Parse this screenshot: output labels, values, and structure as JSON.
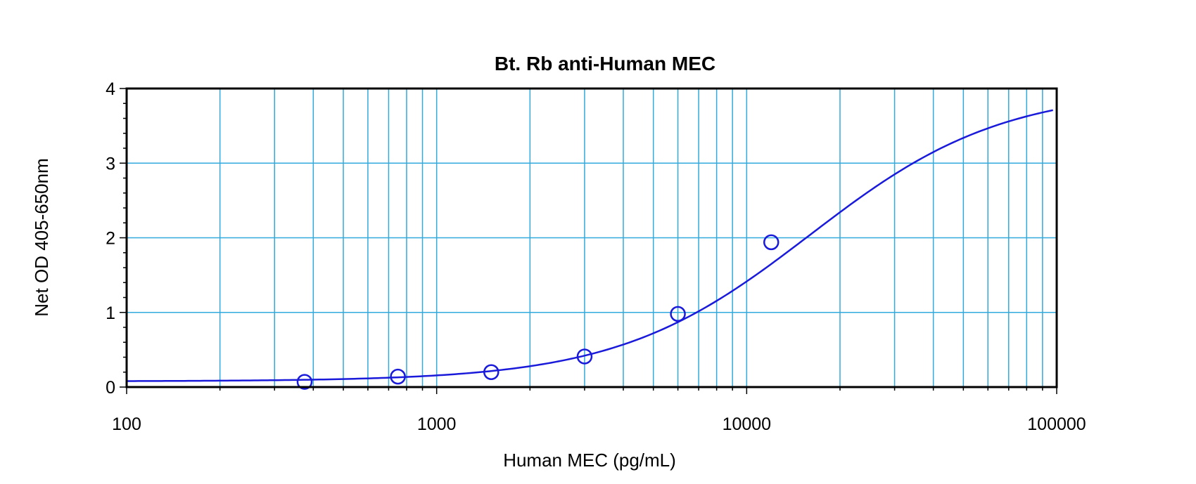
{
  "chart_data": {
    "type": "scatter",
    "title": "Bt. Rb anti-Human MEC",
    "xlabel": "Human MEC (pg/mL)",
    "ylabel": "Net OD 405-650nm",
    "x_scale": "log",
    "xlim": [
      100,
      100000
    ],
    "ylim": [
      0,
      4
    ],
    "x_ticks": [
      "100",
      "1000",
      "10000",
      "100000"
    ],
    "y_ticks": [
      "0",
      "1",
      "2",
      "3",
      "4"
    ],
    "grid": true,
    "colors": {
      "grid": "#33aadd",
      "curve": "#1a1adb",
      "points": "#1a1adb",
      "frame": "#000000"
    },
    "points": [
      {
        "x": 375,
        "y": 0.07
      },
      {
        "x": 750,
        "y": 0.14
      },
      {
        "x": 1500,
        "y": 0.2
      },
      {
        "x": 3000,
        "y": 0.41
      },
      {
        "x": 6000,
        "y": 0.98
      },
      {
        "x": 12000,
        "y": 1.94
      }
    ],
    "fit_curve": {
      "model": "4PL",
      "A": 0.077,
      "D": 4.0,
      "C": 16000,
      "B": 1.4
    }
  }
}
